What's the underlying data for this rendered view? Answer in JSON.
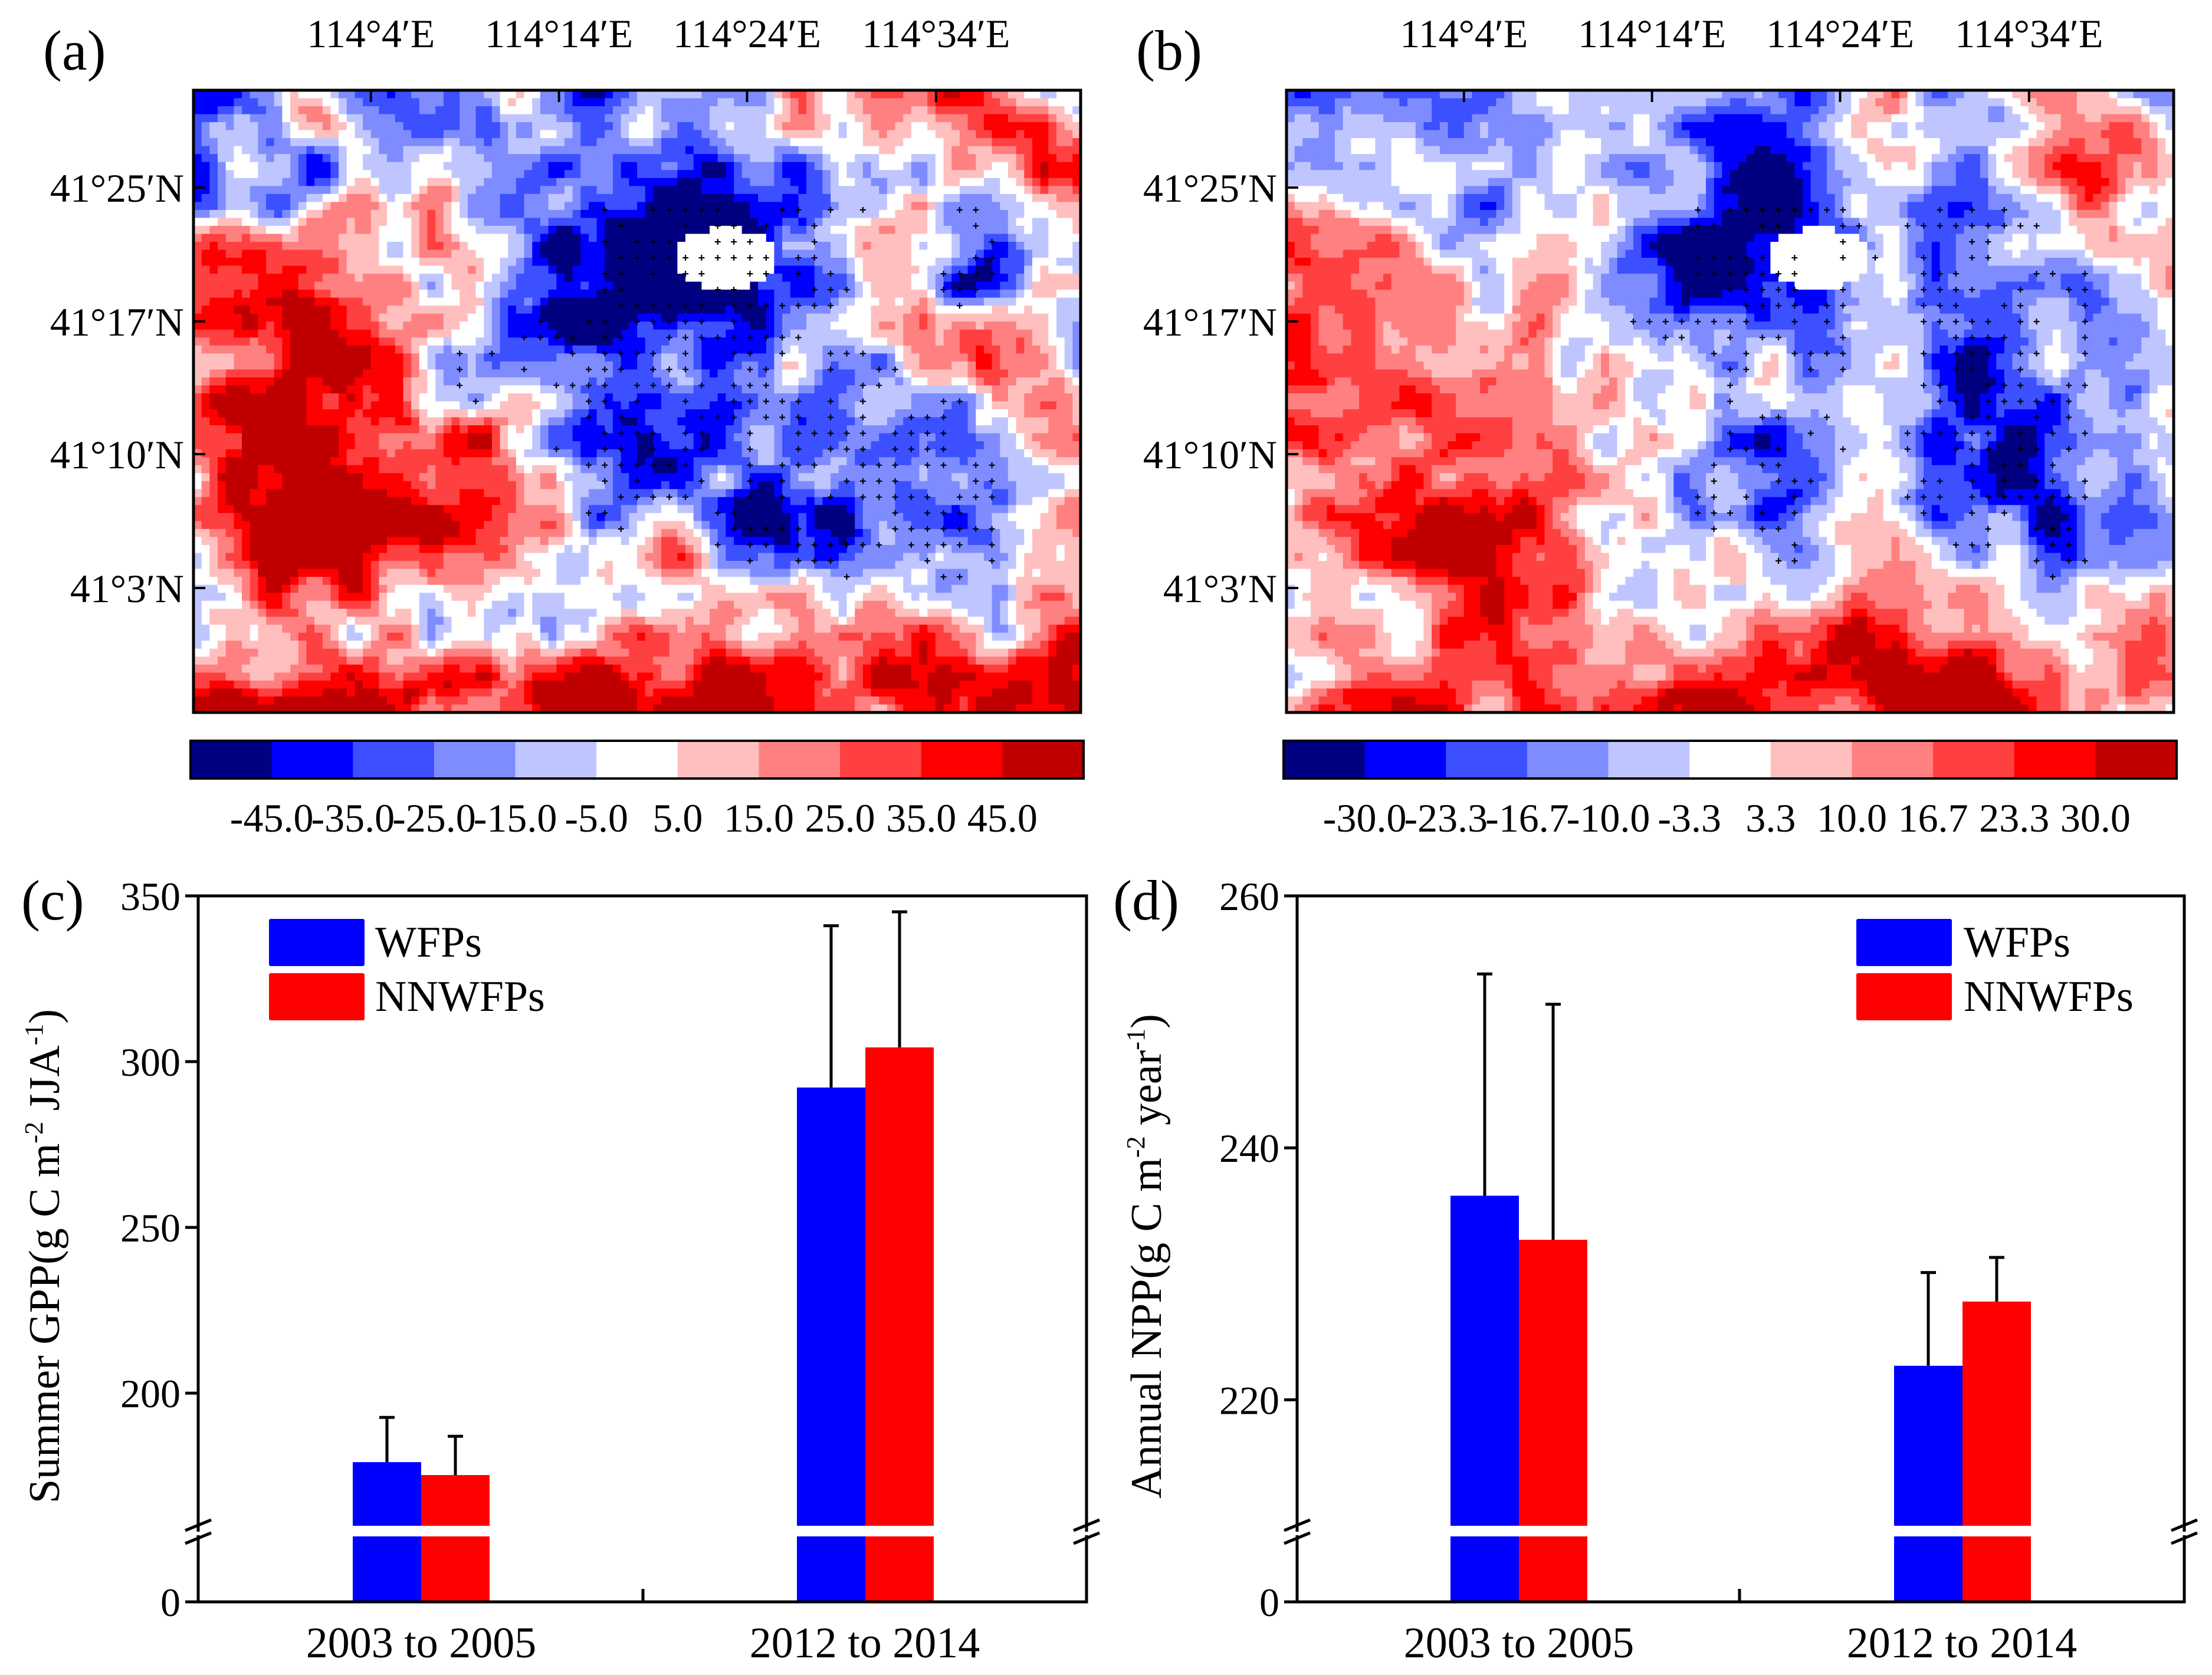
{
  "maps": [
    {
      "panel_label": "(a)",
      "lon_labels": [
        "114°4′E",
        "114°14′E",
        "114°24′E",
        "114°34′E"
      ],
      "lat_labels": [
        "41°25′N",
        "41°17′N",
        "41°10′N",
        "41°3′N"
      ],
      "colorbar": {
        "tick_labels": [
          "-45.0",
          "-35.0",
          "-25.0",
          "-15.0",
          "-5.0",
          "5.0",
          "15.0",
          "25.0",
          "35.0",
          "45.0"
        ],
        "colors": [
          "#000080",
          "#0000ff",
          "#3c50ff",
          "#7f8cff",
          "#bfc6ff",
          "#ffffff",
          "#ffbfbf",
          "#ff8080",
          "#ff4040",
          "#ff0000",
          "#c00000"
        ]
      },
      "seed": 11
    },
    {
      "panel_label": "(b)",
      "lon_labels": [
        "114°4′E",
        "114°14′E",
        "114°24′E",
        "114°34′E"
      ],
      "lat_labels": [
        "41°25′N",
        "41°17′N",
        "41°10′N",
        "41°3′N"
      ],
      "colorbar": {
        "tick_labels": [
          "-30.0",
          "-23.3",
          "-16.7",
          "-10.0",
          "-3.3",
          "3.3",
          "10.0",
          "16.7",
          "23.3",
          "30.0"
        ],
        "colors": [
          "#000080",
          "#0000ff",
          "#3c50ff",
          "#7f8cff",
          "#bfc6ff",
          "#ffffff",
          "#ffbfbf",
          "#ff8080",
          "#ff4040",
          "#ff0000",
          "#c00000"
        ]
      },
      "seed": 37
    }
  ],
  "chart_data": [
    {
      "type": "bar",
      "panel_label": "(c)",
      "categories": [
        "2003 to 2005",
        "2012 to 2014"
      ],
      "series": [
        {
          "name": "WFPs",
          "color": "#0000ff",
          "values": [
            179.2,
            292.2
          ],
          "error": [
            13.5,
            48.8
          ]
        },
        {
          "name": "NNWFPs",
          "color": "#ff0000",
          "values": [
            175.3,
            304.3
          ],
          "error": [
            11.7,
            40.9
          ]
        }
      ],
      "ylabel": {
        "pre": "Summer GPP(g C m",
        "sup1": "-2",
        "mid": " JJA",
        "sup2": "-1",
        "post": ")"
      },
      "ylim_upper": [
        160,
        350
      ],
      "yticks_upper": [
        "200",
        "250",
        "300",
        "350"
      ],
      "yticks_lower": [
        "0"
      ],
      "axis_break": true,
      "legend_position": "top-left"
    },
    {
      "type": "bar",
      "panel_label": "(d)",
      "categories": [
        "2003 to 2005",
        "2012 to 2014"
      ],
      "series": [
        {
          "name": "WFPs",
          "color": "#0000ff",
          "values": [
            236.2,
            222.7
          ],
          "error": [
            17.6,
            7.4
          ]
        },
        {
          "name": "NNWFPs",
          "color": "#ff0000",
          "values": [
            232.7,
            227.8
          ],
          "error": [
            18.7,
            3.5
          ]
        }
      ],
      "ylabel": {
        "pre": "Annual NPP(g C m",
        "sup1": "-2",
        "mid": " year",
        "sup2": "-1",
        "post": ")"
      },
      "ylim_upper": [
        210,
        260
      ],
      "yticks_upper": [
        "220",
        "240",
        "260"
      ],
      "yticks_lower": [
        "0"
      ],
      "axis_break": true,
      "legend_position": "top-right"
    }
  ]
}
